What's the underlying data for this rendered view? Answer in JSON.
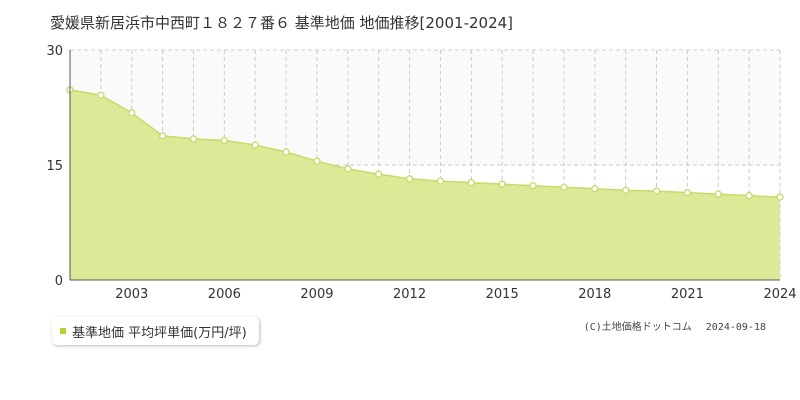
{
  "title": "愛媛県新居浜市中西町１８２７番６ 基準地価 地価推移[2001-2024]",
  "legend": {
    "label": "基準地価 平均坪単価(万円/坪)"
  },
  "copyright": {
    "text": "(C)土地価格ドットコム",
    "date": "2024-09-18"
  },
  "colors": {
    "fill": "#dcea97",
    "line": "#c3dc68",
    "marker_fill": "#ffffff",
    "marker_stroke": "#c3dc68",
    "legend_swatch": "#b5d334",
    "grid": "#cccccc",
    "band": "#fafafa"
  },
  "chart_data": {
    "type": "area",
    "title": "愛媛県新居浜市中西町１８２７番６ 基準地価 地価推移[2001-2024]",
    "x": [
      2001,
      2002,
      2003,
      2004,
      2005,
      2006,
      2007,
      2008,
      2009,
      2010,
      2011,
      2012,
      2013,
      2014,
      2015,
      2016,
      2017,
      2018,
      2019,
      2020,
      2021,
      2022,
      2023,
      2024
    ],
    "series": [
      {
        "name": "基準地価 平均坪単価(万円/坪)",
        "values": [
          24.8,
          24.1,
          21.8,
          18.8,
          18.4,
          18.2,
          17.6,
          16.7,
          15.5,
          14.5,
          13.8,
          13.2,
          12.9,
          12.7,
          12.5,
          12.3,
          12.1,
          11.9,
          11.7,
          11.6,
          11.4,
          11.2,
          11.0,
          10.8
        ]
      }
    ],
    "xlim": [
      2001,
      2024
    ],
    "ylim": [
      0,
      30
    ],
    "yticks": [
      "0",
      "15",
      "30"
    ],
    "xticks": [
      "2003",
      "2006",
      "2009",
      "2012",
      "2015",
      "2018",
      "2021",
      "2024"
    ],
    "xlabel": "",
    "ylabel": "",
    "grid": true,
    "legend_position": "bottom-left"
  }
}
